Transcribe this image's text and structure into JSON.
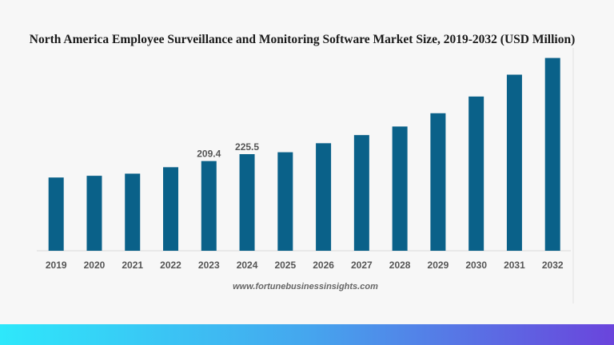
{
  "chart_data": {
    "type": "bar",
    "title": "North America Employee Surveillance and Monitoring Software Market Size, 2019-2032 (USD Million)",
    "xlabel": "",
    "ylabel": "",
    "categories": [
      "2019",
      "2020",
      "2021",
      "2022",
      "2023",
      "2024",
      "2025",
      "2026",
      "2027",
      "2028",
      "2029",
      "2030",
      "2031",
      "2032"
    ],
    "values": [
      171,
      175,
      180,
      195,
      209.4,
      225.5,
      230,
      251,
      270,
      290,
      321,
      360,
      411,
      450
    ],
    "data_labels": {
      "2023": "209.4",
      "2024": "225.5"
    },
    "ylim": [
      0,
      460
    ],
    "grid": false,
    "bar_color": "#0a6189"
  },
  "source": "www.fortunebusinessinsights.com",
  "colors": {
    "background": "#f7f7f7",
    "footer_gradient_start": "#2ee8fb",
    "footer_gradient_end": "#6a44dc"
  }
}
